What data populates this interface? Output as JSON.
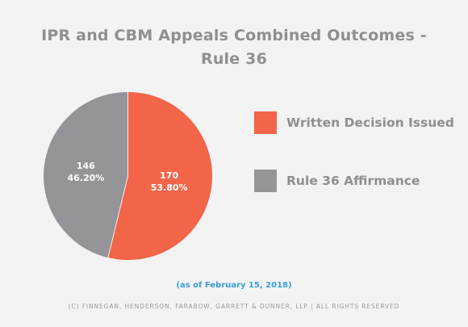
{
  "chart_data": {
    "type": "pie",
    "title_lines": [
      "IPR and CBM Appeals Combined Outcomes -",
      "Rule 36"
    ],
    "slices": [
      {
        "name": "Written Decision Issued",
        "value": 170,
        "percent_label": "53.80%",
        "color": "#f26549"
      },
      {
        "name": "Rule 36 Affirmance",
        "value": 146,
        "percent_label": "46.20%",
        "color": "#939598"
      }
    ],
    "legend_position": "right"
  },
  "footer": {
    "as_of": "(as of February 15, 2018)",
    "copyright": "(C) FINNEGAN, HENDERSON, FARABOW, GARRETT & DUNNER, LLP | ALL RIGHTS RESERVED"
  }
}
